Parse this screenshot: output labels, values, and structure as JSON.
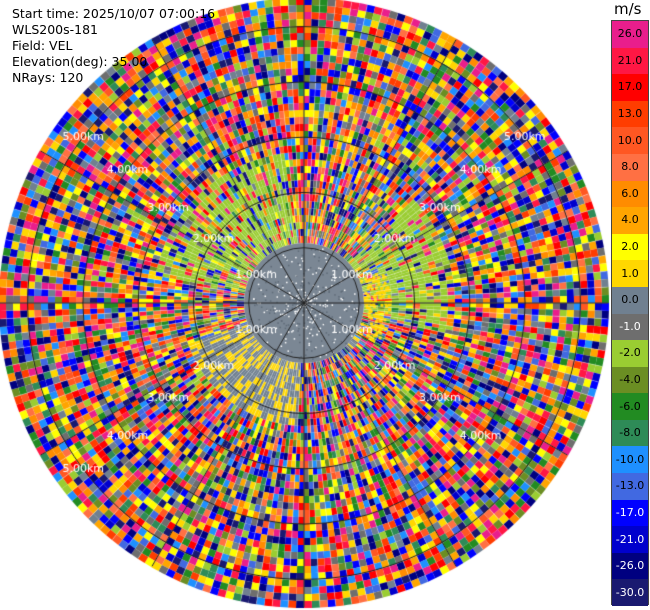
{
  "info": {
    "start_time": "Start time: 2025/10/07 07:00:16",
    "instrument": "WLS200s-181",
    "field": "Field: VEL",
    "elevation": "Elevation(deg): 35.00",
    "nrays": "NRays: 120"
  },
  "chart_data": {
    "type": "heatmap",
    "projection": "polar-ppi",
    "field": "VEL",
    "n_rays": 120,
    "unit": "m/s",
    "range_rings_km": [
      1.0,
      2.0,
      3.0,
      4.0,
      5.0
    ],
    "range_labels": [
      {
        "text": "1.00km",
        "az": 300,
        "r": 1.0
      },
      {
        "text": "1.00km",
        "az": 60,
        "r": 1.0
      },
      {
        "text": "1.00km",
        "az": 240,
        "r": 1.0
      },
      {
        "text": "1.00km",
        "az": 120,
        "r": 1.0
      },
      {
        "text": "2.00km",
        "az": 305,
        "r": 2.0
      },
      {
        "text": "2.00km",
        "az": 55,
        "r": 2.0
      },
      {
        "text": "2.00km",
        "az": 235,
        "r": 2.0
      },
      {
        "text": "2.00km",
        "az": 125,
        "r": 2.0
      },
      {
        "text": "3.00km",
        "az": 305,
        "r": 3.0
      },
      {
        "text": "3.00km",
        "az": 55,
        "r": 3.0
      },
      {
        "text": "3.00km",
        "az": 235,
        "r": 3.0
      },
      {
        "text": "3.00km",
        "az": 125,
        "r": 3.0
      },
      {
        "text": "4.00km",
        "az": 307,
        "r": 4.0
      },
      {
        "text": "4.00km",
        "az": 53,
        "r": 4.0
      },
      {
        "text": "4.00km",
        "az": 233,
        "r": 4.0
      },
      {
        "text": "4.00km",
        "az": 127,
        "r": 4.0
      },
      {
        "text": "5.00km",
        "az": 307,
        "r": 5.0
      },
      {
        "text": "5.00km",
        "az": 53,
        "r": 5.0
      },
      {
        "text": "5.00km",
        "az": 233,
        "r": 5.0
      }
    ],
    "azimuth_lines_deg": [
      0,
      30,
      60,
      90,
      120,
      150,
      180,
      210,
      240,
      270,
      300,
      330
    ],
    "colorbar": {
      "title": "m/s",
      "ticks": [
        "26.0",
        "21.0",
        "17.0",
        "13.0",
        "10.0",
        "8.0",
        "6.0",
        "4.0",
        "2.0",
        "1.0",
        "0.0",
        "-1.0",
        "-2.0",
        "-4.0",
        "-6.0",
        "-8.0",
        "-10.0",
        "-13.0",
        "-17.0",
        "-21.0",
        "-26.0",
        "-30.0"
      ],
      "colors": [
        "#e91e8c",
        "#ff1744",
        "#ff0000",
        "#ff3d00",
        "#ff5722",
        "#ff7043",
        "#ff8c00",
        "#ffa500",
        "#ffff00",
        "#ffd700",
        "#708090",
        "#6e6e6e",
        "#9acd32",
        "#6b8e23",
        "#228b22",
        "#2e8b57",
        "#1e90ff",
        "#4169e1",
        "#0000ff",
        "#0000cd",
        "#000080",
        "#191970"
      ]
    }
  }
}
